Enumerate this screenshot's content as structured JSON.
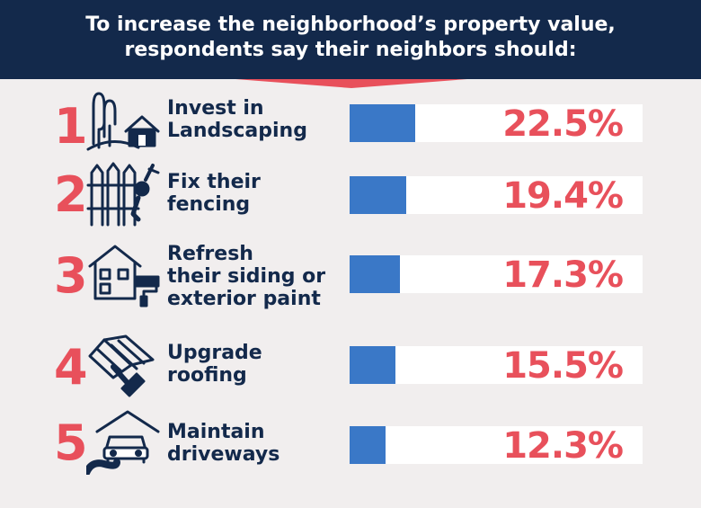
{
  "header": {
    "line1": "To increase the neighborhood’s property value,",
    "line2": "respondents say their neighbors should:"
  },
  "colors": {
    "header_bg": "#13294b",
    "accent": "#e8505b",
    "bar": "#3a78c7",
    "track": "#ffffff"
  },
  "chart_data": {
    "type": "bar",
    "categories": [
      "Invest in Landscaping",
      "Fix their fencing",
      "Refresh their siding or exterior paint",
      "Upgrade roofing",
      "Maintain driveways"
    ],
    "values": [
      22.5,
      19.4,
      17.3,
      15.5,
      12.3
    ],
    "value_labels": [
      "22.5%",
      "19.4%",
      "17.3%",
      "15.5%",
      "12.3%"
    ],
    "ranks": [
      "1",
      "2",
      "3",
      "4",
      "5"
    ],
    "label_lines": [
      "Invest in\nLandscaping",
      "Fix their\nfencing",
      "Refresh\ntheir siding or\nexterior paint",
      "Upgrade\nroofing",
      "Maintain\ndriveways"
    ],
    "icons": [
      "trees-house-icon",
      "fence-paint-icon",
      "house-paint-roller-icon",
      "roof-hammer-icon",
      "car-garage-road-icon"
    ],
    "ylim": [
      0,
      100
    ]
  }
}
